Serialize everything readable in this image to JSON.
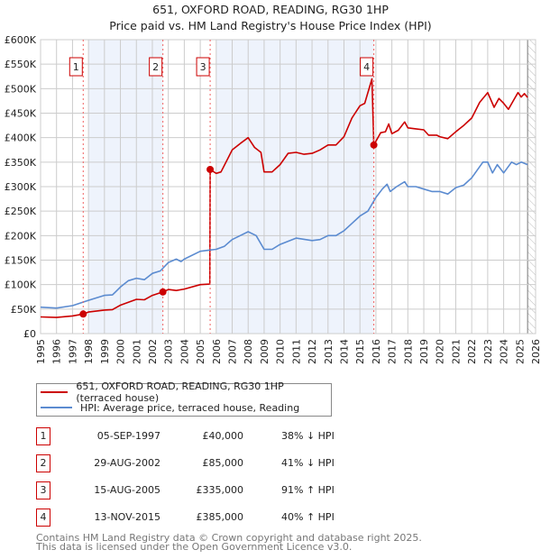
{
  "chart_data": {
    "type": "line",
    "title": "651, OXFORD ROAD, READING, RG30 1HP",
    "subtitle": "Price paid vs. HM Land Registry's House Price Index (HPI)",
    "xlim": [
      1995,
      2026
    ],
    "ylim": [
      0,
      600000
    ],
    "x_ticks": [
      "1995",
      "1996",
      "1997",
      "1998",
      "1999",
      "2000",
      "2001",
      "2002",
      "2003",
      "2004",
      "2005",
      "2006",
      "2007",
      "2008",
      "2009",
      "2010",
      "2011",
      "2012",
      "2013",
      "2014",
      "2015",
      "2016",
      "2017",
      "2018",
      "2019",
      "2020",
      "2021",
      "2022",
      "2023",
      "2024",
      "2025",
      "2026"
    ],
    "y_ticks": [
      {
        "v": 0,
        "label": "£0"
      },
      {
        "v": 50000,
        "label": "£50K"
      },
      {
        "v": 100000,
        "label": "£100K"
      },
      {
        "v": 150000,
        "label": "£150K"
      },
      {
        "v": 200000,
        "label": "£200K"
      },
      {
        "v": 250000,
        "label": "£250K"
      },
      {
        "v": 300000,
        "label": "£300K"
      },
      {
        "v": 350000,
        "label": "£350K"
      },
      {
        "v": 400000,
        "label": "£400K"
      },
      {
        "v": 450000,
        "label": "£450K"
      },
      {
        "v": 500000,
        "label": "£500K"
      },
      {
        "v": 550000,
        "label": "£550K"
      },
      {
        "v": 600000,
        "label": "£600K"
      }
    ],
    "grid": true,
    "shaded_ranges": [
      [
        1998.0,
        2002.66
      ],
      [
        2006.0,
        2015.87
      ]
    ],
    "forecast_hatch_from": 2025.5,
    "series": [
      {
        "name": "651, OXFORD ROAD, READING, RG30 1HP (terraced house)",
        "color": "#cc0000",
        "points": [
          [
            1995,
            34000
          ],
          [
            1996,
            33000
          ],
          [
            1997,
            36000
          ],
          [
            1997.67,
            40000
          ],
          [
            1998,
            44000
          ],
          [
            1999,
            48000
          ],
          [
            1999.5,
            49000
          ],
          [
            2000,
            58000
          ],
          [
            2001,
            70000
          ],
          [
            2001.5,
            69000
          ],
          [
            2002,
            78000
          ],
          [
            2002.66,
            85000
          ],
          [
            2003,
            90000
          ],
          [
            2003.5,
            88000
          ],
          [
            2004,
            91000
          ],
          [
            2005,
            100000
          ],
          [
            2005.6,
            101000
          ],
          [
            2005.62,
            335000
          ],
          [
            2006,
            327000
          ],
          [
            2006.3,
            330000
          ],
          [
            2007,
            375000
          ],
          [
            2007.5,
            388000
          ],
          [
            2008,
            400000
          ],
          [
            2008.4,
            380000
          ],
          [
            2008.8,
            370000
          ],
          [
            2009,
            330000
          ],
          [
            2009.5,
            330000
          ],
          [
            2010,
            345000
          ],
          [
            2010.5,
            368000
          ],
          [
            2011,
            370000
          ],
          [
            2011.5,
            366000
          ],
          [
            2012,
            368000
          ],
          [
            2012.5,
            375000
          ],
          [
            2013,
            385000
          ],
          [
            2013.5,
            385000
          ],
          [
            2014,
            402000
          ],
          [
            2014.5,
            440000
          ],
          [
            2015,
            465000
          ],
          [
            2015.3,
            470000
          ],
          [
            2015.75,
            520000
          ],
          [
            2015.87,
            385000
          ],
          [
            2016.3,
            410000
          ],
          [
            2016.6,
            412000
          ],
          [
            2016.8,
            428000
          ],
          [
            2017,
            408000
          ],
          [
            2017.4,
            415000
          ],
          [
            2017.8,
            432000
          ],
          [
            2018,
            420000
          ],
          [
            2018.5,
            418000
          ],
          [
            2019,
            416000
          ],
          [
            2019.3,
            405000
          ],
          [
            2019.8,
            405000
          ],
          [
            2020,
            402000
          ],
          [
            2020.5,
            398000
          ],
          [
            2021,
            412000
          ],
          [
            2021.5,
            425000
          ],
          [
            2022,
            440000
          ],
          [
            2022.5,
            472000
          ],
          [
            2023,
            492000
          ],
          [
            2023.4,
            462000
          ],
          [
            2023.7,
            480000
          ],
          [
            2024,
            470000
          ],
          [
            2024.3,
            458000
          ],
          [
            2024.6,
            475000
          ],
          [
            2024.9,
            492000
          ],
          [
            2025.1,
            483000
          ],
          [
            2025.3,
            490000
          ],
          [
            2025.5,
            482000
          ]
        ]
      },
      {
        "name": "HPI: Average price, terraced house, Reading",
        "color": "#5b8bd0",
        "points": [
          [
            1995,
            54000
          ],
          [
            1996,
            52000
          ],
          [
            1997,
            57000
          ],
          [
            1998,
            68000
          ],
          [
            1999,
            78000
          ],
          [
            1999.5,
            79000
          ],
          [
            2000,
            95000
          ],
          [
            2000.5,
            108000
          ],
          [
            2001,
            113000
          ],
          [
            2001.5,
            110000
          ],
          [
            2002,
            123000
          ],
          [
            2002.5,
            128000
          ],
          [
            2003,
            145000
          ],
          [
            2003.5,
            152000
          ],
          [
            2003.8,
            147000
          ],
          [
            2004,
            152000
          ],
          [
            2005,
            168000
          ],
          [
            2005.5,
            170000
          ],
          [
            2006,
            172000
          ],
          [
            2006.5,
            178000
          ],
          [
            2007,
            192000
          ],
          [
            2007.5,
            200000
          ],
          [
            2008,
            208000
          ],
          [
            2008.5,
            200000
          ],
          [
            2009,
            172000
          ],
          [
            2009.5,
            172000
          ],
          [
            2010,
            182000
          ],
          [
            2011,
            195000
          ],
          [
            2012,
            190000
          ],
          [
            2012.5,
            192000
          ],
          [
            2013,
            200000
          ],
          [
            2013.5,
            200000
          ],
          [
            2014,
            210000
          ],
          [
            2014.5,
            225000
          ],
          [
            2015,
            240000
          ],
          [
            2015.5,
            250000
          ],
          [
            2016,
            278000
          ],
          [
            2016.4,
            295000
          ],
          [
            2016.7,
            305000
          ],
          [
            2016.9,
            290000
          ],
          [
            2017.3,
            300000
          ],
          [
            2017.8,
            310000
          ],
          [
            2018,
            300000
          ],
          [
            2018.5,
            300000
          ],
          [
            2019,
            295000
          ],
          [
            2019.5,
            290000
          ],
          [
            2020,
            290000
          ],
          [
            2020.5,
            285000
          ],
          [
            2021,
            298000
          ],
          [
            2021.5,
            303000
          ],
          [
            2022,
            318000
          ],
          [
            2022.7,
            350000
          ],
          [
            2023,
            350000
          ],
          [
            2023.3,
            328000
          ],
          [
            2023.6,
            345000
          ],
          [
            2024,
            328000
          ],
          [
            2024.5,
            350000
          ],
          [
            2024.8,
            345000
          ],
          [
            2025.1,
            350000
          ],
          [
            2025.5,
            345000
          ]
        ]
      }
    ],
    "sales": [
      {
        "label": "1",
        "x": 1997.67,
        "price": 40000
      },
      {
        "label": "2",
        "x": 2002.66,
        "price": 85000
      },
      {
        "label": "3",
        "x": 2005.62,
        "price": 335000
      },
      {
        "label": "4",
        "x": 2015.87,
        "price": 385000
      }
    ]
  },
  "legend": [
    {
      "label": "651, OXFORD ROAD, READING, RG30 1HP (terraced house)",
      "color": "#cc0000"
    },
    {
      "label": "HPI: Average price, terraced house, Reading",
      "color": "#5b8bd0"
    }
  ],
  "transactions": [
    {
      "num": "1",
      "date": "05-SEP-1997",
      "price": "£40,000",
      "hpi": "38% ↓ HPI"
    },
    {
      "num": "2",
      "date": "29-AUG-2002",
      "price": "£85,000",
      "hpi": "41% ↓ HPI"
    },
    {
      "num": "3",
      "date": "15-AUG-2005",
      "price": "£335,000",
      "hpi": "91% ↑ HPI"
    },
    {
      "num": "4",
      "date": "13-NOV-2015",
      "price": "£385,000",
      "hpi": "40% ↑ HPI"
    }
  ],
  "footer": {
    "line1": "Contains HM Land Registry data © Crown copyright and database right 2025.",
    "line2": "This data is licensed under the Open Government Licence v3.0."
  }
}
